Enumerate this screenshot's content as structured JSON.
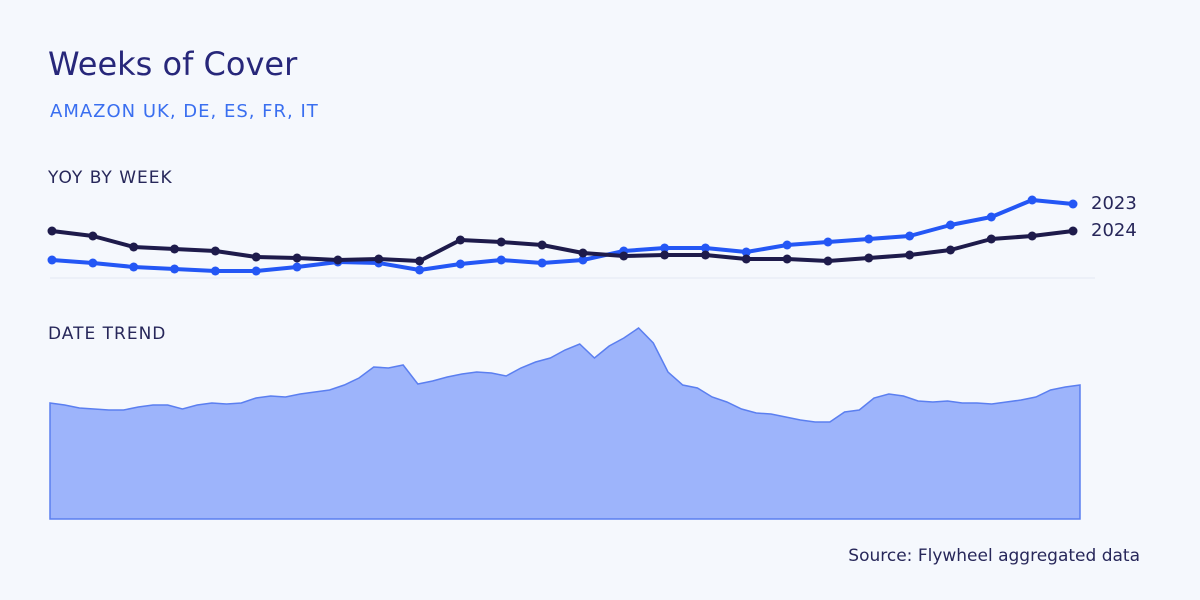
{
  "title": "Weeks of Cover",
  "subtitle": "AMAZON UK, DE, ES, FR, IT",
  "source": "Source: Flywheel aggregated data",
  "chart_data": [
    {
      "type": "line",
      "title": "YOY BY WEEK",
      "ylim": [
        0,
        90
      ],
      "series": [
        {
          "name": "2023",
          "color": "#2457f5",
          "values": [
            20,
            17,
            13,
            11,
            9,
            9,
            13,
            18,
            17,
            10,
            16,
            20,
            17,
            20,
            29,
            32,
            32,
            28,
            35,
            38,
            41,
            44,
            55,
            63,
            80,
            76
          ]
        },
        {
          "name": "2024",
          "color": "#1e1b4b",
          "values": [
            49,
            44,
            33,
            31,
            29,
            23,
            22,
            20,
            21,
            19,
            40,
            38,
            35,
            27,
            24,
            25,
            25,
            21,
            21,
            19,
            22,
            25,
            30,
            41,
            44,
            49
          ]
        }
      ]
    },
    {
      "type": "area",
      "title": "DATE TREND",
      "ylim": [
        0,
        200
      ],
      "color": "#9db4fb",
      "values": [
        116,
        114,
        111,
        110,
        109,
        109,
        112,
        114,
        114,
        110,
        114,
        116,
        115,
        116,
        121,
        123,
        122,
        125,
        127,
        129,
        134,
        141,
        152,
        151,
        154,
        135,
        138,
        142,
        145,
        147,
        146,
        143,
        151,
        157,
        161,
        169,
        175,
        161,
        173,
        181,
        191,
        176,
        147,
        134,
        131,
        122,
        117,
        110,
        106,
        105,
        102,
        99,
        97,
        97,
        107,
        109,
        121,
        125,
        123,
        118,
        117,
        118,
        116,
        116,
        115,
        117,
        119,
        122,
        129,
        132,
        134
      ]
    }
  ]
}
